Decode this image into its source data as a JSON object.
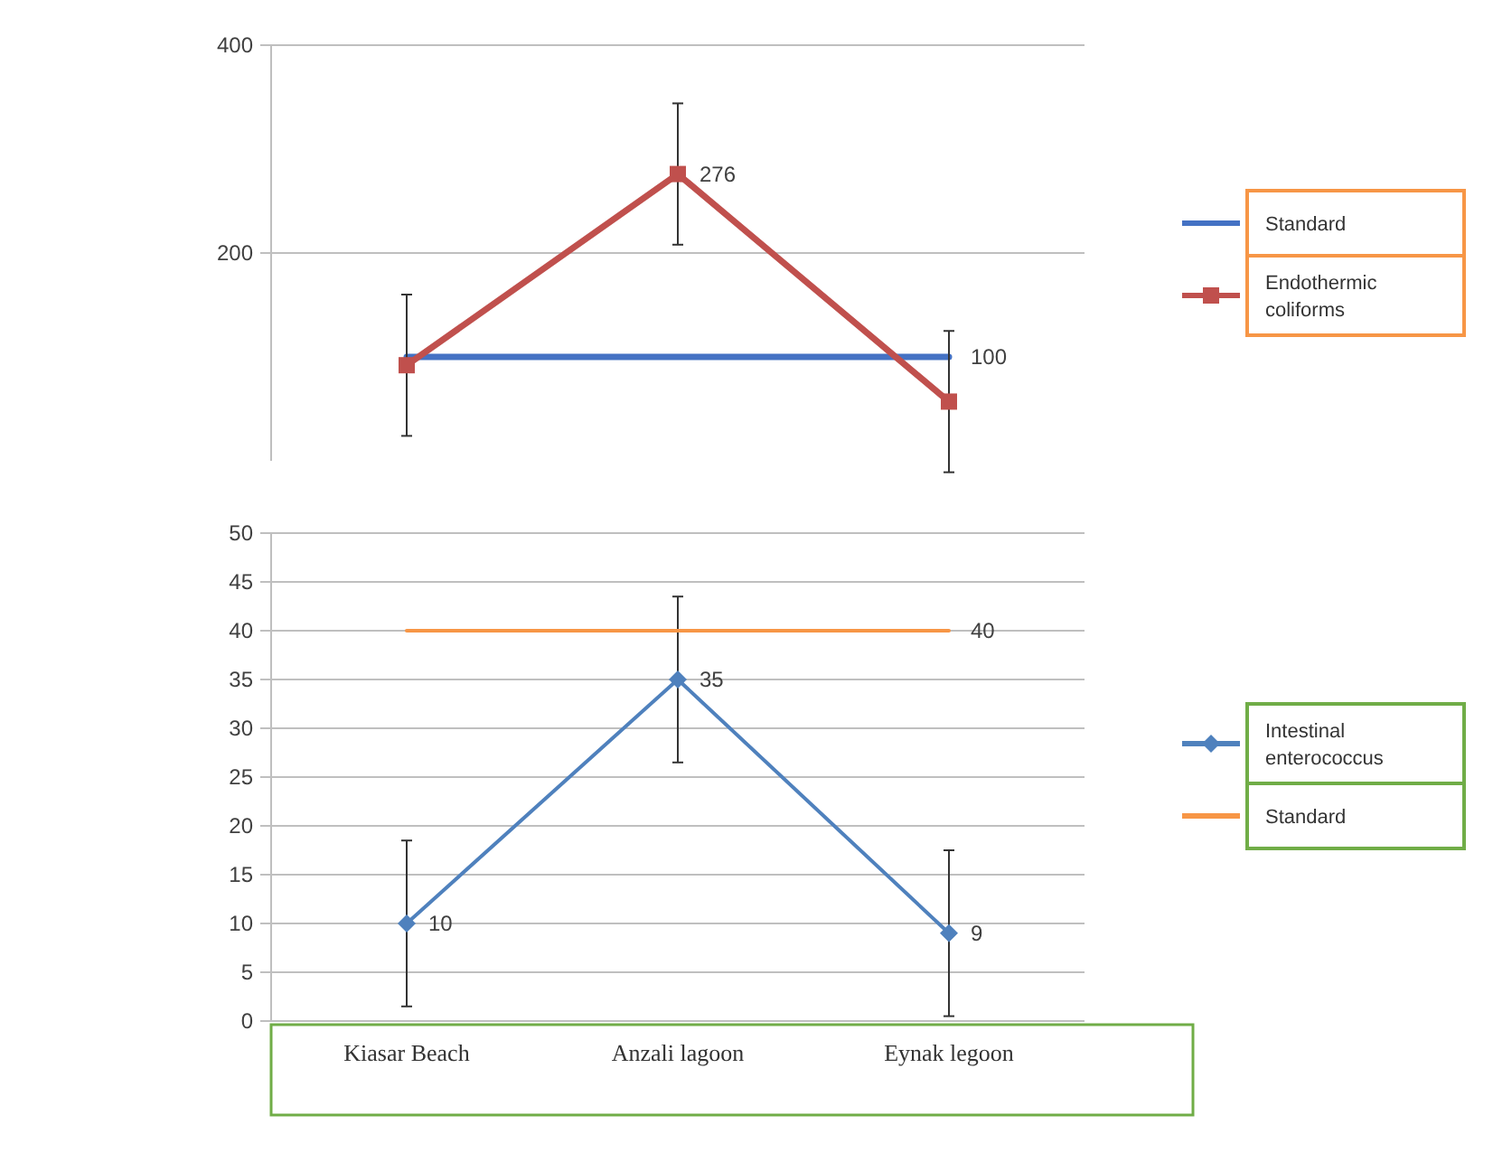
{
  "chart_data": [
    {
      "type": "line",
      "categories": [
        null,
        null,
        null
      ],
      "ylim": [
        0,
        400
      ],
      "yticks": [
        200,
        400
      ],
      "grid": "y",
      "legend": "right",
      "tick_labels": "y",
      "series": [
        {
          "name": "Standard",
          "color": "#4472c4",
          "values": [
            100,
            100,
            100
          ],
          "marker": "none",
          "value_labels": [
            null,
            null,
            "100"
          ]
        },
        {
          "name": "Endothermic coliforms",
          "color": "#c0504d",
          "values": [
            92,
            276,
            57
          ],
          "marker": "square",
          "errors": [
            68,
            68,
            68
          ],
          "value_labels": [
            null,
            "276",
            null
          ]
        }
      ]
    },
    {
      "type": "line",
      "categories": [
        "Kiasar Beach",
        "Anzali lagoon",
        "Eynak legoon"
      ],
      "ylim": [
        0,
        50
      ],
      "yticks": [
        0,
        5,
        10,
        15,
        20,
        25,
        30,
        35,
        40,
        45,
        50
      ],
      "grid": "y",
      "legend": "right",
      "series": [
        {
          "name": "Intestinal enterococcus",
          "color": "#4f81bd",
          "values": [
            10,
            35,
            9
          ],
          "marker": "diamond",
          "errors": [
            8.5,
            8.5,
            8.5
          ],
          "value_labels": [
            "10",
            "35",
            "9"
          ]
        },
        {
          "name": "Standard",
          "color": "#f79646",
          "values": [
            40,
            40,
            40
          ],
          "marker": "none",
          "value_labels": [
            null,
            null,
            "40"
          ]
        }
      ]
    }
  ]
}
